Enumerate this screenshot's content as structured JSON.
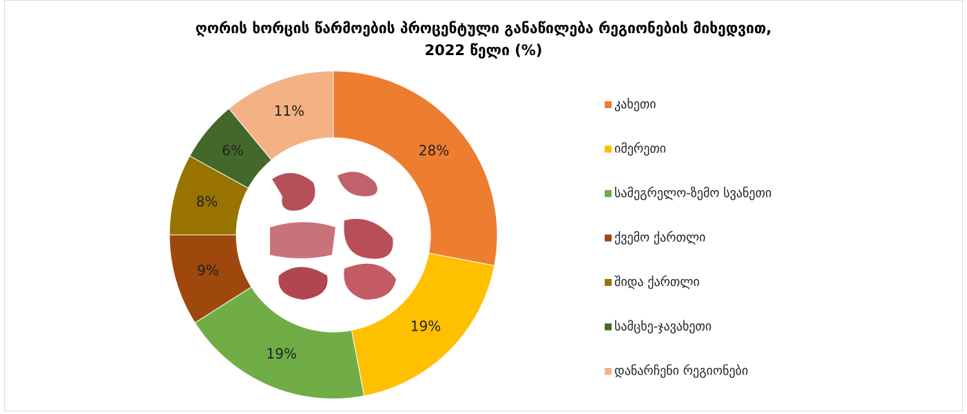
{
  "chart_data": {
    "type": "pie",
    "title": [
      "ღორის ხორცის წარმოების პროცენტული განაწილება რეგიონების მიხედვით,",
      "2022 წელი (%)"
    ],
    "categories": [
      "კახეთი",
      "იმერეთი",
      "სამეგრელო-ზემო სვანეთი",
      "ქვემო ქართლი",
      "შიდა ქართლი",
      "სამცხე-ჯავახეთი",
      "დანარჩენი რეგიონები"
    ],
    "values": [
      28,
      19,
      19,
      9,
      8,
      6,
      11
    ],
    "value_labels": [
      "28%",
      "19%",
      "19%",
      "9%",
      "8%",
      "6%",
      "11%"
    ],
    "colors": [
      "#ED7D31",
      "#FFC000",
      "#70AD47",
      "#9E480E",
      "#997300",
      "#43682B",
      "#F4B183"
    ],
    "legend": "right"
  }
}
